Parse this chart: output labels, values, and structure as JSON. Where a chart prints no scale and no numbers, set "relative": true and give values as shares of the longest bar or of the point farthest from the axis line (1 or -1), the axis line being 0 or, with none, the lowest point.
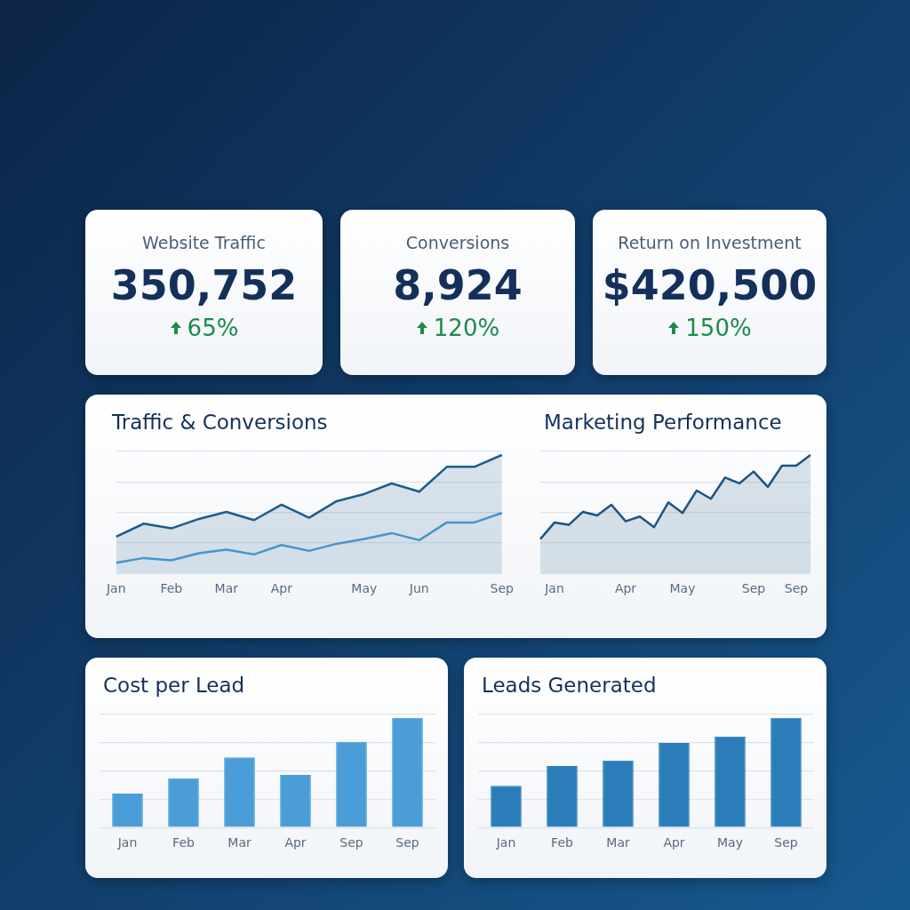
{
  "chart_data": [
    {
      "type": "other",
      "title": "Website Traffic",
      "annotations": [
        "350,752",
        "65%"
      ]
    },
    {
      "type": "other",
      "title": "Conversions",
      "annotations": [
        "8,924",
        "120%"
      ]
    },
    {
      "type": "other",
      "title": "Return on Investment",
      "annotations": [
        "$420,500",
        "150%"
      ]
    },
    {
      "type": "line",
      "title": "Traffic & Conversions",
      "relative": true,
      "grid": "y",
      "marker": "none",
      "categories": [
        "Jan",
        null,
        "Feb",
        null,
        "Mar",
        null,
        "Apr",
        null,
        null,
        "May",
        null,
        "Jun",
        null,
        null,
        "Sep"
      ],
      "series": [
        {
          "type": "area",
          "color": "#1d5d8c",
          "values": [
            0.31,
            0.42,
            0.38,
            0.46,
            0.52,
            0.45,
            0.58,
            0.47,
            0.61,
            0.67,
            0.76,
            0.69,
            0.9,
            0.9,
            1
          ]
        },
        {
          "type": "line",
          "color": "#4f9fd6",
          "values": [
            0.09,
            0.13,
            0.11,
            0.17,
            0.2,
            0.16,
            0.24,
            0.19,
            0.25,
            0.29,
            0.34,
            0.28,
            0.43,
            0.43,
            0.51
          ]
        }
      ]
    },
    {
      "type": "area",
      "title": "Marketing Performance",
      "relative": true,
      "grid": "y",
      "marker": "none",
      "color": "#1d5482",
      "categories": [
        null,
        "Jan",
        null,
        null,
        null,
        null,
        "Apr",
        null,
        null,
        null,
        "May",
        null,
        null,
        null,
        null,
        "Sep",
        null,
        null,
        "Sep",
        null
      ],
      "values": [
        0.29,
        0.43,
        0.41,
        0.52,
        0.49,
        0.58,
        0.44,
        0.48,
        0.39,
        0.6,
        0.51,
        0.7,
        0.63,
        0.81,
        0.76,
        0.86,
        0.73,
        0.91,
        0.91,
        1
      ]
    },
    {
      "type": "bar",
      "title": "Cost per Lead",
      "relative": true,
      "grid": "y",
      "color": "#4a9dd6",
      "categories": [
        "Jan",
        "Feb",
        "Mar",
        "Apr",
        "Sep",
        "Sep"
      ],
      "values": [
        0.31,
        0.45,
        0.64,
        0.48,
        0.78,
        1
      ]
    },
    {
      "type": "bar",
      "title": "Leads Generated",
      "relative": true,
      "grid": "y",
      "color": "#2a7db8",
      "categories": [
        "Jan",
        "Feb",
        "Mar",
        "Apr",
        "May",
        "Sep"
      ],
      "values": [
        0.38,
        0.56,
        0.61,
        0.77,
        0.83,
        1
      ]
    }
  ]
}
